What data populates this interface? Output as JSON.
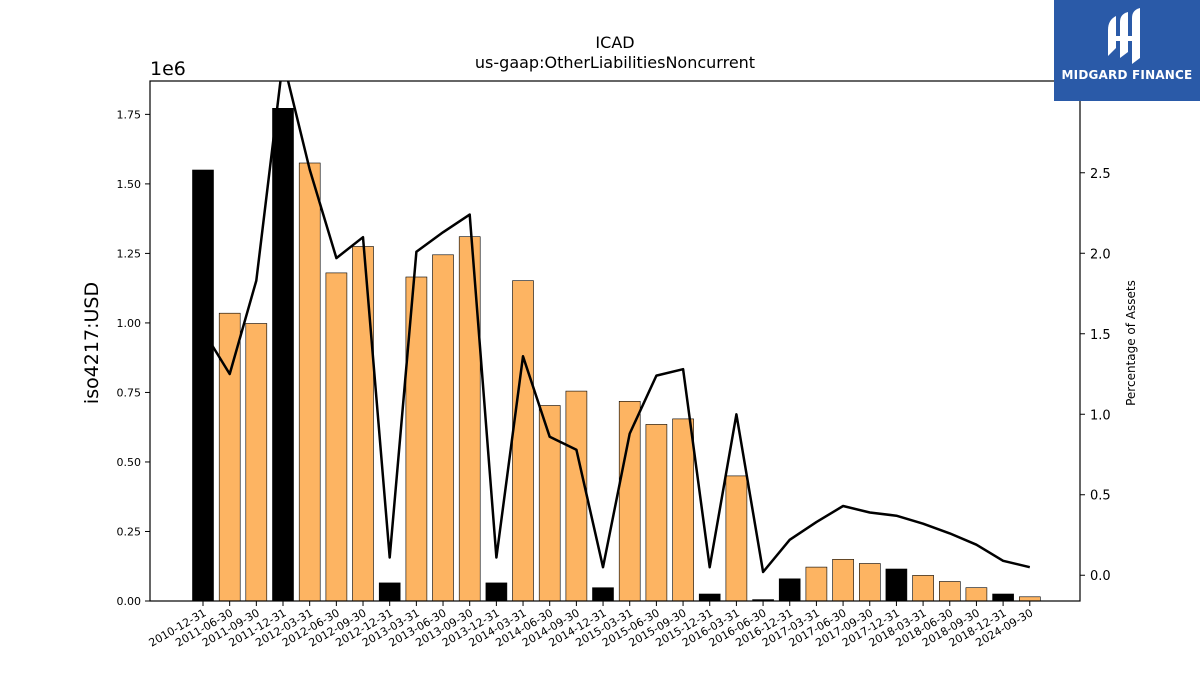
{
  "brand": {
    "name": "MIDGARD FINANCE",
    "bg_color": "#2a5aa8"
  },
  "chart_data": {
    "type": "bar",
    "title": "ICAD",
    "subtitle": "us-gaap:OtherLiabilitiesNoncurrent",
    "ylabel": "iso4217:USD",
    "y_multiplier_label": "1e6",
    "y2label": "Percentage of Assets",
    "ylim": [
      0,
      1870000
    ],
    "y2lim": [
      -0.16,
      3.07
    ],
    "yticks": [
      0,
      250000,
      500000,
      750000,
      1000000,
      1250000,
      1500000,
      1750000
    ],
    "ytick_labels": [
      "0.00",
      "0.25",
      "0.50",
      "0.75",
      "1.00",
      "1.25",
      "1.50",
      "1.75"
    ],
    "y2ticks": [
      0.0,
      0.5,
      1.0,
      1.5,
      2.0,
      2.5
    ],
    "y2tick_labels": [
      "0.0",
      "0.5",
      "1.0",
      "1.5",
      "2.0",
      "2.5"
    ],
    "grid": false,
    "colors": {
      "annual": "#000000",
      "quarterly": "#fdb462",
      "line": "#000000"
    },
    "categories": [
      "2010-12-31",
      "2011-06-30",
      "2011-09-30",
      "2011-12-31",
      "2012-03-31",
      "2012-06-30",
      "2012-09-30",
      "2012-12-31",
      "2013-03-31",
      "2013-06-30",
      "2013-09-30",
      "2013-12-31",
      "2014-03-31",
      "2014-06-30",
      "2014-09-30",
      "2014-12-31",
      "2015-03-31",
      "2015-06-30",
      "2015-09-30",
      "2015-12-31",
      "2016-03-31",
      "2016-06-30",
      "2016-12-31",
      "2017-03-31",
      "2017-06-30",
      "2017-09-30",
      "2017-12-31",
      "2018-03-31",
      "2018-06-30",
      "2018-09-30",
      "2018-12-31",
      "2024-09-30"
    ],
    "series": [
      {
        "kind": "bar",
        "values": [
          1550000,
          1035000,
          998000,
          1772000,
          1575000,
          1180000,
          1275000,
          65000,
          1165000,
          1245000,
          1310000,
          65000,
          1152000,
          703000,
          755000,
          48000,
          718000,
          635000,
          655000,
          25000,
          450000,
          5000,
          80000,
          122000,
          150000,
          135000,
          115000,
          92000,
          70000,
          48000,
          25000,
          15000
        ],
        "bar_type": [
          "annual",
          "quarterly",
          "quarterly",
          "annual",
          "quarterly",
          "quarterly",
          "quarterly",
          "annual",
          "quarterly",
          "quarterly",
          "quarterly",
          "annual",
          "quarterly",
          "quarterly",
          "quarterly",
          "annual",
          "quarterly",
          "quarterly",
          "quarterly",
          "annual",
          "quarterly",
          "annual",
          "annual",
          "quarterly",
          "quarterly",
          "quarterly",
          "annual",
          "quarterly",
          "quarterly",
          "quarterly",
          "annual",
          "quarterly"
        ]
      },
      {
        "kind": "line",
        "axis": "right",
        "values": [
          1.52,
          1.25,
          1.83,
          3.2,
          2.52,
          1.97,
          2.1,
          0.11,
          2.01,
          2.13,
          2.24,
          0.11,
          1.36,
          0.86,
          0.78,
          0.05,
          0.88,
          1.24,
          1.28,
          0.05,
          1.0,
          0.02,
          0.22,
          0.33,
          0.43,
          0.39,
          0.37,
          0.32,
          0.26,
          0.19,
          0.09,
          0.05
        ]
      }
    ]
  }
}
